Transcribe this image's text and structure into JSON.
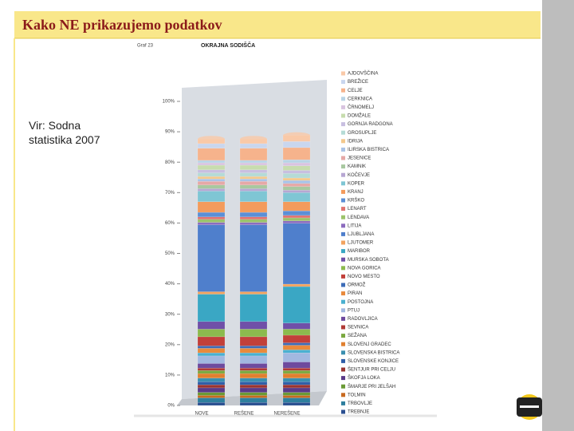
{
  "slide_title": "Kako NE prikazujemo podatkov",
  "source": "Vir: Sodna statistika 2007",
  "chart_data": {
    "type": "bar",
    "stacked": true,
    "label": "Graf 23",
    "title": "OKRAJNA SODIŠČA",
    "categories": [
      "NOVE",
      "REŠENE",
      "NEREŠENE"
    ],
    "ylim": [
      0,
      100
    ],
    "yticks": [
      {
        "value": 0,
        "label": "0%"
      },
      {
        "value": 10,
        "label": "10%"
      },
      {
        "value": 20,
        "label": "20%"
      },
      {
        "value": 30,
        "label": "30%"
      },
      {
        "value": 40,
        "label": "40%"
      },
      {
        "value": 50,
        "label": "50%"
      },
      {
        "value": 60,
        "label": "60%"
      },
      {
        "value": 70,
        "label": "70%"
      },
      {
        "value": 80,
        "label": "80%"
      },
      {
        "value": 90,
        "label": "90%"
      },
      {
        "value": 100,
        "label": "100%"
      }
    ],
    "series": [
      {
        "name": "AJDOVŠČINA",
        "color": "#f9c9a8",
        "values": [
          1.5,
          1.5,
          2
        ]
      },
      {
        "name": "BREŽICE",
        "color": "#c9d6ee",
        "values": [
          1.5,
          1.5,
          2
        ]
      },
      {
        "name": "CELJE",
        "color": "#f6b38c",
        "values": [
          4,
          4,
          4
        ]
      },
      {
        "name": "CERKNICA",
        "color": "#b9d4e6",
        "values": [
          0.8,
          0.8,
          1
        ]
      },
      {
        "name": "ČRNOMELJ",
        "color": "#d9c4e0",
        "values": [
          0.8,
          0.8,
          1
        ]
      },
      {
        "name": "DOMŽALE",
        "color": "#c7dcae",
        "values": [
          1.5,
          1.5,
          1.5
        ]
      },
      {
        "name": "GORNJA RADGONA",
        "color": "#c8bfe0",
        "values": [
          1,
          1,
          1
        ]
      },
      {
        "name": "GROSUPLJE",
        "color": "#b5dbd6",
        "values": [
          1.2,
          1.2,
          1.5
        ]
      },
      {
        "name": "IDRIJA",
        "color": "#f3c98d",
        "values": [
          0.8,
          0.8,
          0.8
        ]
      },
      {
        "name": "ILIRSKA BISTRICA",
        "color": "#a9c3e6",
        "values": [
          0.8,
          0.8,
          1
        ]
      },
      {
        "name": "JESENICE",
        "color": "#e6a8a6",
        "values": [
          1.2,
          1.2,
          1
        ]
      },
      {
        "name": "KAMNIK",
        "color": "#a8c8a0",
        "values": [
          1.2,
          1.2,
          1.2
        ]
      },
      {
        "name": "KOČEVJE",
        "color": "#b7a7d3",
        "values": [
          0.8,
          0.8,
          0.8
        ]
      },
      {
        "name": "KOPER",
        "color": "#7fc6d4",
        "values": [
          3.5,
          3.5,
          3
        ]
      },
      {
        "name": "KRANJ",
        "color": "#f39b5c",
        "values": [
          3.5,
          3.5,
          3
        ]
      },
      {
        "name": "KRŠKO",
        "color": "#5b8fd6",
        "values": [
          1.5,
          1.5,
          1.5
        ]
      },
      {
        "name": "LENART",
        "color": "#e07470",
        "values": [
          0.8,
          0.8,
          0.8
        ]
      },
      {
        "name": "LENDAVA",
        "color": "#9cc36a",
        "values": [
          1,
          1,
          1
        ]
      },
      {
        "name": "LITIJA",
        "color": "#8c6cbf",
        "values": [
          0.8,
          0.8,
          0.8
        ]
      },
      {
        "name": "LJUBLJANA",
        "color": "#4f7fcc",
        "values": [
          22,
          22,
          20
        ]
      },
      {
        "name": "LJUTOMER",
        "color": "#f2a35f",
        "values": [
          0.8,
          0.8,
          0.8
        ]
      },
      {
        "name": "MARIBOR",
        "color": "#3aa7c4",
        "values": [
          9,
          9,
          12
        ]
      },
      {
        "name": "MURSKA SOBOTA",
        "color": "#7050a8",
        "values": [
          2.5,
          2.5,
          2
        ]
      },
      {
        "name": "NOVA GORICA",
        "color": "#8cba4e",
        "values": [
          2.5,
          2.5,
          2
        ]
      },
      {
        "name": "NOVO MESTO",
        "color": "#c2403a",
        "values": [
          3,
          3,
          2.5
        ]
      },
      {
        "name": "ORMOŽ",
        "color": "#3d6cb8",
        "values": [
          0.8,
          0.8,
          0.8
        ]
      },
      {
        "name": "PIRAN",
        "color": "#e98a3c",
        "values": [
          1.5,
          1.5,
          1.5
        ]
      },
      {
        "name": "POSTOJNA",
        "color": "#4ab0d0",
        "values": [
          1,
          1,
          1
        ]
      },
      {
        "name": "PTUJ",
        "color": "#a2b8e0",
        "values": [
          2.5,
          2.5,
          3
        ]
      },
      {
        "name": "RADOVLJICA",
        "color": "#6e4a9e",
        "values": [
          1.5,
          1.5,
          2
        ]
      },
      {
        "name": "SEVNICA",
        "color": "#b03a36",
        "values": [
          0.8,
          0.8,
          0.8
        ]
      },
      {
        "name": "SEŽANA",
        "color": "#7aa83f",
        "values": [
          1,
          1,
          1
        ]
      },
      {
        "name": "SLOVENJ GRADEC",
        "color": "#e08030",
        "values": [
          1.5,
          1.5,
          1.5
        ]
      },
      {
        "name": "SLOVENSKA BISTRICA",
        "color": "#3a8fb0",
        "values": [
          1.2,
          1.2,
          1.2
        ]
      },
      {
        "name": "SLOVENSKE KONJICE",
        "color": "#2f5ea8",
        "values": [
          1,
          1,
          1
        ]
      },
      {
        "name": "ŠENTJUR PRI CELJU",
        "color": "#9a3430",
        "values": [
          1,
          1,
          1
        ]
      },
      {
        "name": "ŠKOFJA LOKA",
        "color": "#5a3a88",
        "values": [
          1.5,
          1.5,
          1.5
        ]
      },
      {
        "name": "ŠMARJE PRI JELŠAH",
        "color": "#6a9a35",
        "values": [
          1,
          1,
          1
        ]
      },
      {
        "name": "TOLMIN",
        "color": "#c86a20",
        "values": [
          0.8,
          0.8,
          0.8
        ]
      },
      {
        "name": "TRBOVLJE",
        "color": "#2e7f9e",
        "values": [
          1.5,
          1.5,
          1.5
        ]
      },
      {
        "name": "TREBNJE",
        "color": "#2a4f90",
        "values": [
          1,
          1,
          1
        ]
      }
    ]
  }
}
